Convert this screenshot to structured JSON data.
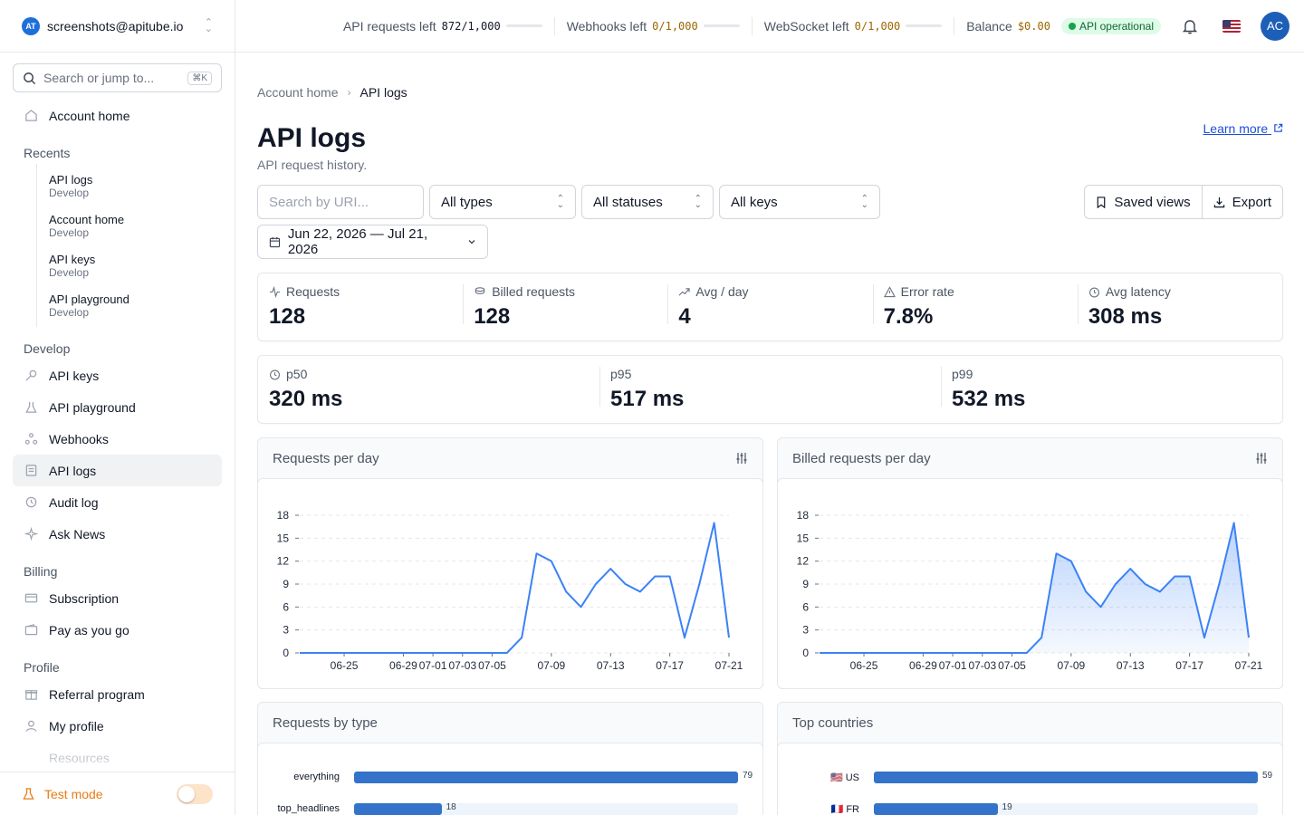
{
  "account": {
    "logo_text": "AT",
    "email": "screenshots@apitube.io"
  },
  "search": {
    "placeholder": "Search or jump to...",
    "shortcut": "⌘K"
  },
  "nav": {
    "home": "Account home",
    "recents_title": "Recents",
    "recents": [
      {
        "title": "API logs",
        "sub": "Develop"
      },
      {
        "title": "Account home",
        "sub": "Develop"
      },
      {
        "title": "API keys",
        "sub": "Develop"
      },
      {
        "title": "API playground",
        "sub": "Develop"
      }
    ],
    "develop_title": "Develop",
    "develop": [
      "API keys",
      "API playground",
      "Webhooks",
      "API logs",
      "Audit log",
      "Ask News"
    ],
    "billing_title": "Billing",
    "billing": [
      "Subscription",
      "Pay as you go"
    ],
    "profile_title": "Profile",
    "profile": [
      "Referral program",
      "My profile"
    ],
    "resources_title": "Resources",
    "test_mode": "Test mode"
  },
  "topbar": {
    "api_label": "API requests left",
    "api_value": "872/1,000",
    "webhooks_label": "Webhooks left",
    "webhooks_value": "0/1,000",
    "ws_label": "WebSocket left",
    "ws_value": "0/1,000",
    "balance_label": "Balance",
    "balance_value": "$0.00",
    "status": "API operational",
    "avatar": "AC"
  },
  "breadcrumb": {
    "home": "Account home",
    "current": "API logs"
  },
  "page": {
    "title": "API logs",
    "subtitle": "API request history.",
    "learn_more": "Learn more"
  },
  "filters": {
    "search_placeholder": "Search by URI...",
    "type": "All types",
    "status": "All statuses",
    "keys": "All keys",
    "date_range": "Jun 22, 2026 — Jul 21, 2026",
    "saved_views": "Saved views",
    "export": "Export"
  },
  "stats": [
    {
      "label": "Requests",
      "value": "128"
    },
    {
      "label": "Billed requests",
      "value": "128"
    },
    {
      "label": "Avg / day",
      "value": "4"
    },
    {
      "label": "Error rate",
      "value": "7.8%"
    },
    {
      "label": "Avg latency",
      "value": "308 ms"
    }
  ],
  "latency": [
    {
      "label": "p50",
      "value": "320 ms"
    },
    {
      "label": "p95",
      "value": "517 ms"
    },
    {
      "label": "p99",
      "value": "532 ms"
    }
  ],
  "cards": {
    "requests_per_day": "Requests per day",
    "billed_per_day": "Billed requests per day",
    "by_type": "Requests by type",
    "top_countries": "Top countries"
  },
  "chart_data": [
    {
      "type": "line",
      "title": "Requests per day",
      "x": [
        "06-22",
        "06-23",
        "06-24",
        "06-25",
        "06-26",
        "06-27",
        "06-28",
        "06-29",
        "06-30",
        "07-01",
        "07-02",
        "07-03",
        "07-04",
        "07-05",
        "07-06",
        "07-07",
        "07-08",
        "07-09",
        "07-10",
        "07-11",
        "07-12",
        "07-13",
        "07-14",
        "07-15",
        "07-16",
        "07-17",
        "07-18",
        "07-19",
        "07-20",
        "07-21"
      ],
      "x_tick_labels": [
        "06-25",
        "06-29",
        "07-01",
        "07-03",
        "07-05",
        "07-09",
        "07-13",
        "07-17",
        "07-21"
      ],
      "values": [
        0,
        0,
        0,
        0,
        0,
        0,
        0,
        0,
        0,
        0,
        0,
        0,
        0,
        0,
        0,
        2,
        13,
        12,
        8,
        6,
        9,
        11,
        9,
        8,
        10,
        10,
        2,
        9,
        17,
        2
      ],
      "ylim": [
        0,
        18
      ],
      "yticks": [
        0,
        3,
        6,
        9,
        12,
        15,
        18
      ],
      "color": "#3b82f6",
      "grid": true
    },
    {
      "type": "area",
      "title": "Billed requests per day",
      "x": [
        "06-22",
        "06-23",
        "06-24",
        "06-25",
        "06-26",
        "06-27",
        "06-28",
        "06-29",
        "06-30",
        "07-01",
        "07-02",
        "07-03",
        "07-04",
        "07-05",
        "07-06",
        "07-07",
        "07-08",
        "07-09",
        "07-10",
        "07-11",
        "07-12",
        "07-13",
        "07-14",
        "07-15",
        "07-16",
        "07-17",
        "07-18",
        "07-19",
        "07-20",
        "07-21"
      ],
      "x_tick_labels": [
        "06-25",
        "06-29",
        "07-01",
        "07-03",
        "07-05",
        "07-09",
        "07-13",
        "07-17",
        "07-21"
      ],
      "values": [
        0,
        0,
        0,
        0,
        0,
        0,
        0,
        0,
        0,
        0,
        0,
        0,
        0,
        0,
        0,
        2,
        13,
        12,
        8,
        6,
        9,
        11,
        9,
        8,
        10,
        10,
        2,
        9,
        17,
        2
      ],
      "ylim": [
        0,
        18
      ],
      "yticks": [
        0,
        3,
        6,
        9,
        12,
        15,
        18
      ],
      "color": "#3b82f6",
      "grid": true
    },
    {
      "type": "bar",
      "title": "Requests by type",
      "orientation": "horizontal",
      "categories": [
        "everything",
        "top_headlines"
      ],
      "values": [
        79,
        18
      ],
      "max": 79,
      "color": "#3473c9"
    },
    {
      "type": "bar",
      "title": "Top countries",
      "orientation": "horizontal",
      "categories": [
        "US",
        "FR"
      ],
      "flags": [
        "🇺🇸",
        "🇫🇷"
      ],
      "values": [
        59,
        19
      ],
      "max": 59,
      "color": "#3473c9"
    }
  ]
}
